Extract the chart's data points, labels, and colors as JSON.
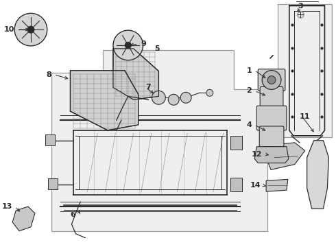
{
  "bg_color": "#ffffff",
  "line_color": "#2a2a2a",
  "box_fill": "#f0f0f0",
  "figsize": [
    4.9,
    3.6
  ],
  "dpi": 100,
  "label_positions": {
    "10": [
      0.22,
      0.88,
      "right"
    ],
    "9": [
      1.92,
      0.88,
      "left"
    ],
    "8": [
      0.55,
      0.65,
      "right"
    ],
    "5": [
      2.85,
      0.55,
      "center"
    ],
    "7": [
      2.42,
      0.62,
      "center"
    ],
    "6": [
      1.08,
      0.13,
      "center"
    ],
    "1": [
      3.62,
      0.78,
      "right"
    ],
    "2": [
      3.62,
      0.65,
      "right"
    ],
    "3": [
      4.18,
      0.92,
      "center"
    ],
    "4": [
      3.62,
      0.48,
      "right"
    ],
    "12": [
      3.98,
      0.38,
      "right"
    ],
    "14": [
      3.85,
      0.22,
      "right"
    ],
    "11": [
      4.55,
      0.28,
      "center"
    ],
    "13": [
      0.18,
      0.1,
      "center"
    ]
  }
}
